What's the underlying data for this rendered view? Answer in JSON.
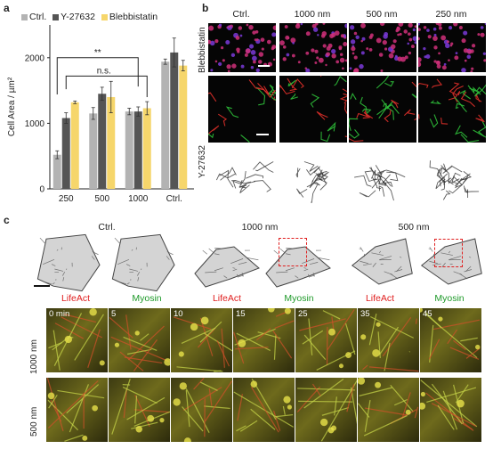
{
  "panels": {
    "a": "a",
    "b": "b",
    "c": "c"
  },
  "chart_data": {
    "type": "bar",
    "ylabel": "Cell Area / µm²",
    "ylim": [
      0,
      2500
    ],
    "yticks": [
      0,
      1000,
      2000
    ],
    "categories": [
      "250",
      "500",
      "1000",
      "Ctrl."
    ],
    "series": [
      {
        "name": "Ctrl.",
        "color": "#b3b3b3",
        "values": [
          520,
          1150,
          1180,
          1940
        ],
        "errors": [
          60,
          90,
          50,
          40
        ]
      },
      {
        "name": "Y-27632",
        "color": "#555555",
        "values": [
          1080,
          1450,
          1180,
          2080
        ],
        "errors": [
          80,
          100,
          70,
          220
        ]
      },
      {
        "name": "Blebbistatin",
        "color": "#f6d66b",
        "values": [
          1320,
          1400,
          1230,
          1880
        ],
        "errors": [
          20,
          240,
          100,
          80
        ]
      }
    ],
    "annotations": [
      {
        "text": "**"
      },
      {
        "text": "n.s."
      }
    ]
  },
  "panel_b": {
    "columns": [
      "Ctrl.",
      "1000 nm",
      "500 nm",
      "250 nm"
    ],
    "rows": [
      "Blebbistatin",
      "Y-27632"
    ]
  },
  "panel_c": {
    "groups": [
      {
        "title": "Ctrl.",
        "labels": [
          "LifeAct",
          "Myosin"
        ]
      },
      {
        "title": "1000 nm",
        "labels": [
          "LifeAct",
          "Myosin"
        ]
      },
      {
        "title": "500 nm",
        "labels": [
          "LifeAct",
          "Myosin"
        ]
      }
    ],
    "timelapse_rows": [
      "1000 nm",
      "500 nm"
    ],
    "timepoints": [
      "0 min",
      "5",
      "10",
      "15",
      "25",
      "35",
      "45"
    ]
  }
}
